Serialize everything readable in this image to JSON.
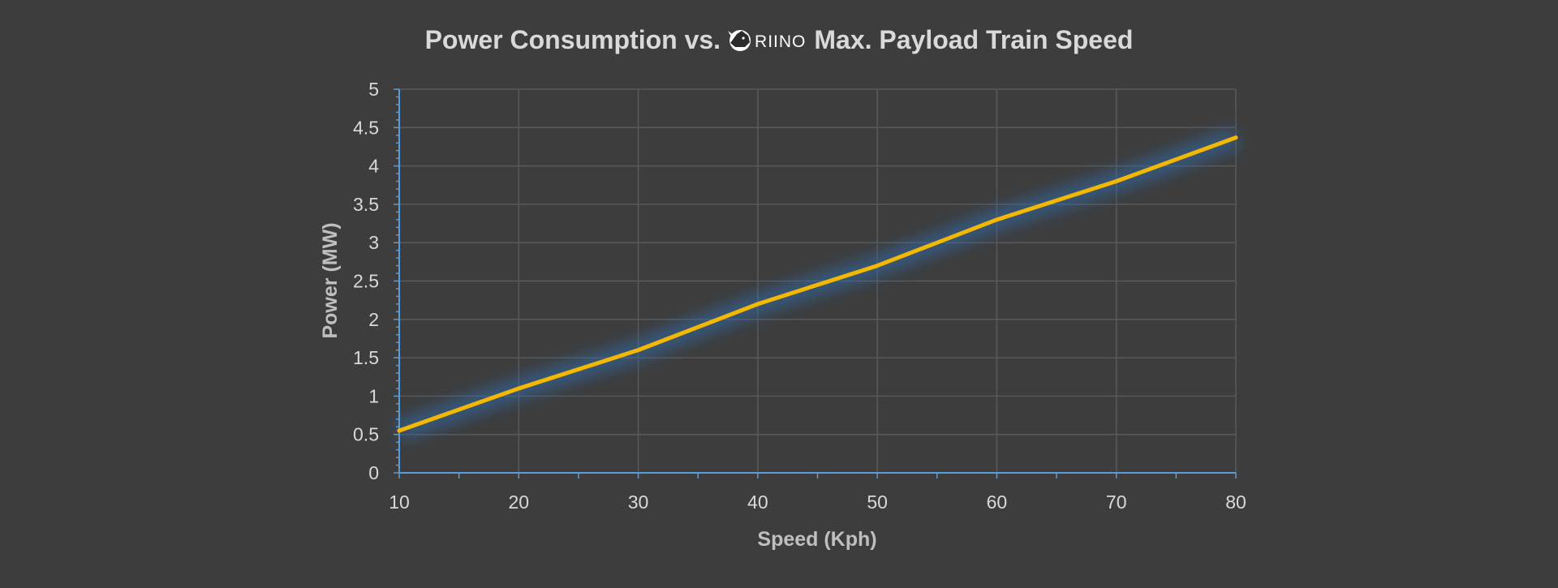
{
  "chart_data": {
    "type": "line",
    "title_before": "Power Consumption vs.",
    "logo_text": "RIINO",
    "title_after": "Max. Payload Train Speed",
    "xlabel": "Speed (Kph)",
    "ylabel": "Power (MW)",
    "xlim": [
      10,
      80
    ],
    "ylim": [
      0,
      5
    ],
    "x_ticks": [
      "10",
      "20",
      "30",
      "40",
      "50",
      "60",
      "70",
      "80"
    ],
    "y_ticks": [
      "0",
      "0.5",
      "1",
      "1.5",
      "2",
      "2.5",
      "3",
      "3.5",
      "4",
      "4.5",
      "5"
    ],
    "grid": true,
    "legend": "none",
    "series": [
      {
        "x": [
          10,
          20,
          30,
          40,
          50,
          60,
          70,
          80
        ],
        "y": [
          0.55,
          1.1,
          1.6,
          2.2,
          2.7,
          3.3,
          3.8,
          4.37
        ]
      }
    ],
    "colors": {
      "background": "#3d3d3d",
      "grid": "#595959",
      "axis": "#5b9bd5",
      "line": "#f5b800",
      "glow": "#2e6fb5",
      "text": "#d9d9d9",
      "label": "#bfbfbf"
    }
  }
}
